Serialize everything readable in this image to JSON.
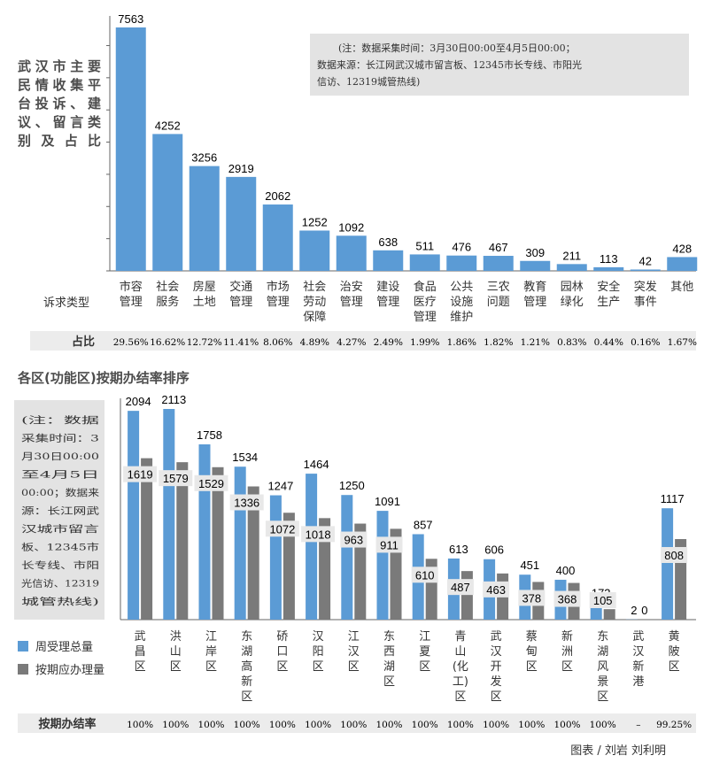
{
  "colors": {
    "blue": "#5b9bd5",
    "gray": "#7a7a7a",
    "label_bg": "#e8e8e8",
    "band": "#ececec"
  },
  "chart_data": [
    {
      "type": "bar",
      "title_lines": [
        "武汉市主要",
        "民情收集平",
        "台投诉、建",
        "议、留言类",
        "别及占比"
      ],
      "note_lines": [
        "(注：数据采集时间：3月30日00:00至4月5日00:00；",
        "数据来源：长江网武汉城市留言板、12345市长专线、市阳光",
        "信访、12319城管热线)"
      ],
      "xlabel": "诉求类型",
      "ratio_label": "占比",
      "categories": [
        [
          "市容",
          "管理"
        ],
        [
          "社会",
          "服务"
        ],
        [
          "房屋",
          "土地"
        ],
        [
          "交通",
          "管理"
        ],
        [
          "市场",
          "管理"
        ],
        [
          "社会",
          "劳动",
          "保障"
        ],
        [
          "治安",
          "管理"
        ],
        [
          "建设",
          "管理"
        ],
        [
          "食品",
          "医疗",
          "管理"
        ],
        [
          "公共",
          "设施",
          "维护"
        ],
        [
          "三农",
          "问题"
        ],
        [
          "教育",
          "管理"
        ],
        [
          "园林",
          "绿化"
        ],
        [
          "安全",
          "生产"
        ],
        [
          "突发",
          "事件"
        ],
        [
          "其他"
        ]
      ],
      "values": [
        7563,
        4252,
        3256,
        2919,
        2062,
        1252,
        1092,
        638,
        511,
        476,
        467,
        309,
        211,
        113,
        42,
        428
      ],
      "shares": [
        "29.56%",
        "16.62%",
        "12.72%",
        "11.41%",
        "8.06%",
        "4.89%",
        "4.27%",
        "2.49%",
        "1.99%",
        "1.86%",
        "1.82%",
        "1.21%",
        "0.83%",
        "0.44%",
        "0.16%",
        "1.67%"
      ],
      "ylim": [
        0,
        7563
      ]
    },
    {
      "type": "bar",
      "title": "各区(功能区)按期办结率排序",
      "note_lines": [
        "(注：数据",
        "采集时间：3",
        "月30日00:00",
        "至4月5日",
        "00:00；数据来",
        "源：长江网武",
        "汉城市留言",
        "板、12345市",
        "长专线、市阳",
        "光信访、12319",
        "城管热线)"
      ],
      "categories": [
        [
          "武",
          "昌",
          "区"
        ],
        [
          "洪",
          "山",
          "区"
        ],
        [
          "江",
          "岸",
          "区"
        ],
        [
          "东",
          "湖",
          "高",
          "新",
          "区"
        ],
        [
          "硚",
          "口",
          "区"
        ],
        [
          "汉",
          "阳",
          "区"
        ],
        [
          "江",
          "汉",
          "区"
        ],
        [
          "东",
          "西",
          "湖",
          "区"
        ],
        [
          "江",
          "夏",
          "区"
        ],
        [
          "青",
          "山",
          "(化",
          "工)",
          "区"
        ],
        [
          "武",
          "汉",
          "开",
          "发",
          "区"
        ],
        [
          "蔡",
          "甸",
          "区"
        ],
        [
          "新",
          "洲",
          "区"
        ],
        [
          "东",
          "湖",
          "风",
          "景",
          "区"
        ],
        [
          "武",
          "汉",
          "新",
          "港"
        ],
        [
          "黄",
          "陂",
          "区"
        ]
      ],
      "series": [
        {
          "name": "周受理总量",
          "values": [
            2094,
            2113,
            1758,
            1534,
            1247,
            1464,
            1250,
            1091,
            857,
            613,
            606,
            451,
            400,
            173,
            2,
            1117
          ]
        },
        {
          "name": "按期应办理量",
          "values": [
            1619,
            1579,
            1529,
            1336,
            1072,
            1018,
            963,
            911,
            610,
            487,
            463,
            378,
            368,
            105,
            0,
            808
          ]
        }
      ],
      "rate_label": "按期办结率",
      "rates": [
        "100%",
        "100%",
        "100%",
        "100%",
        "100%",
        "100%",
        "100%",
        "100%",
        "100%",
        "100%",
        "100%",
        "100%",
        "100%",
        "100%",
        "–",
        "99.25%"
      ],
      "ylim": [
        0,
        2113
      ]
    }
  ],
  "credit": "图表 / 刘岩  刘利明"
}
